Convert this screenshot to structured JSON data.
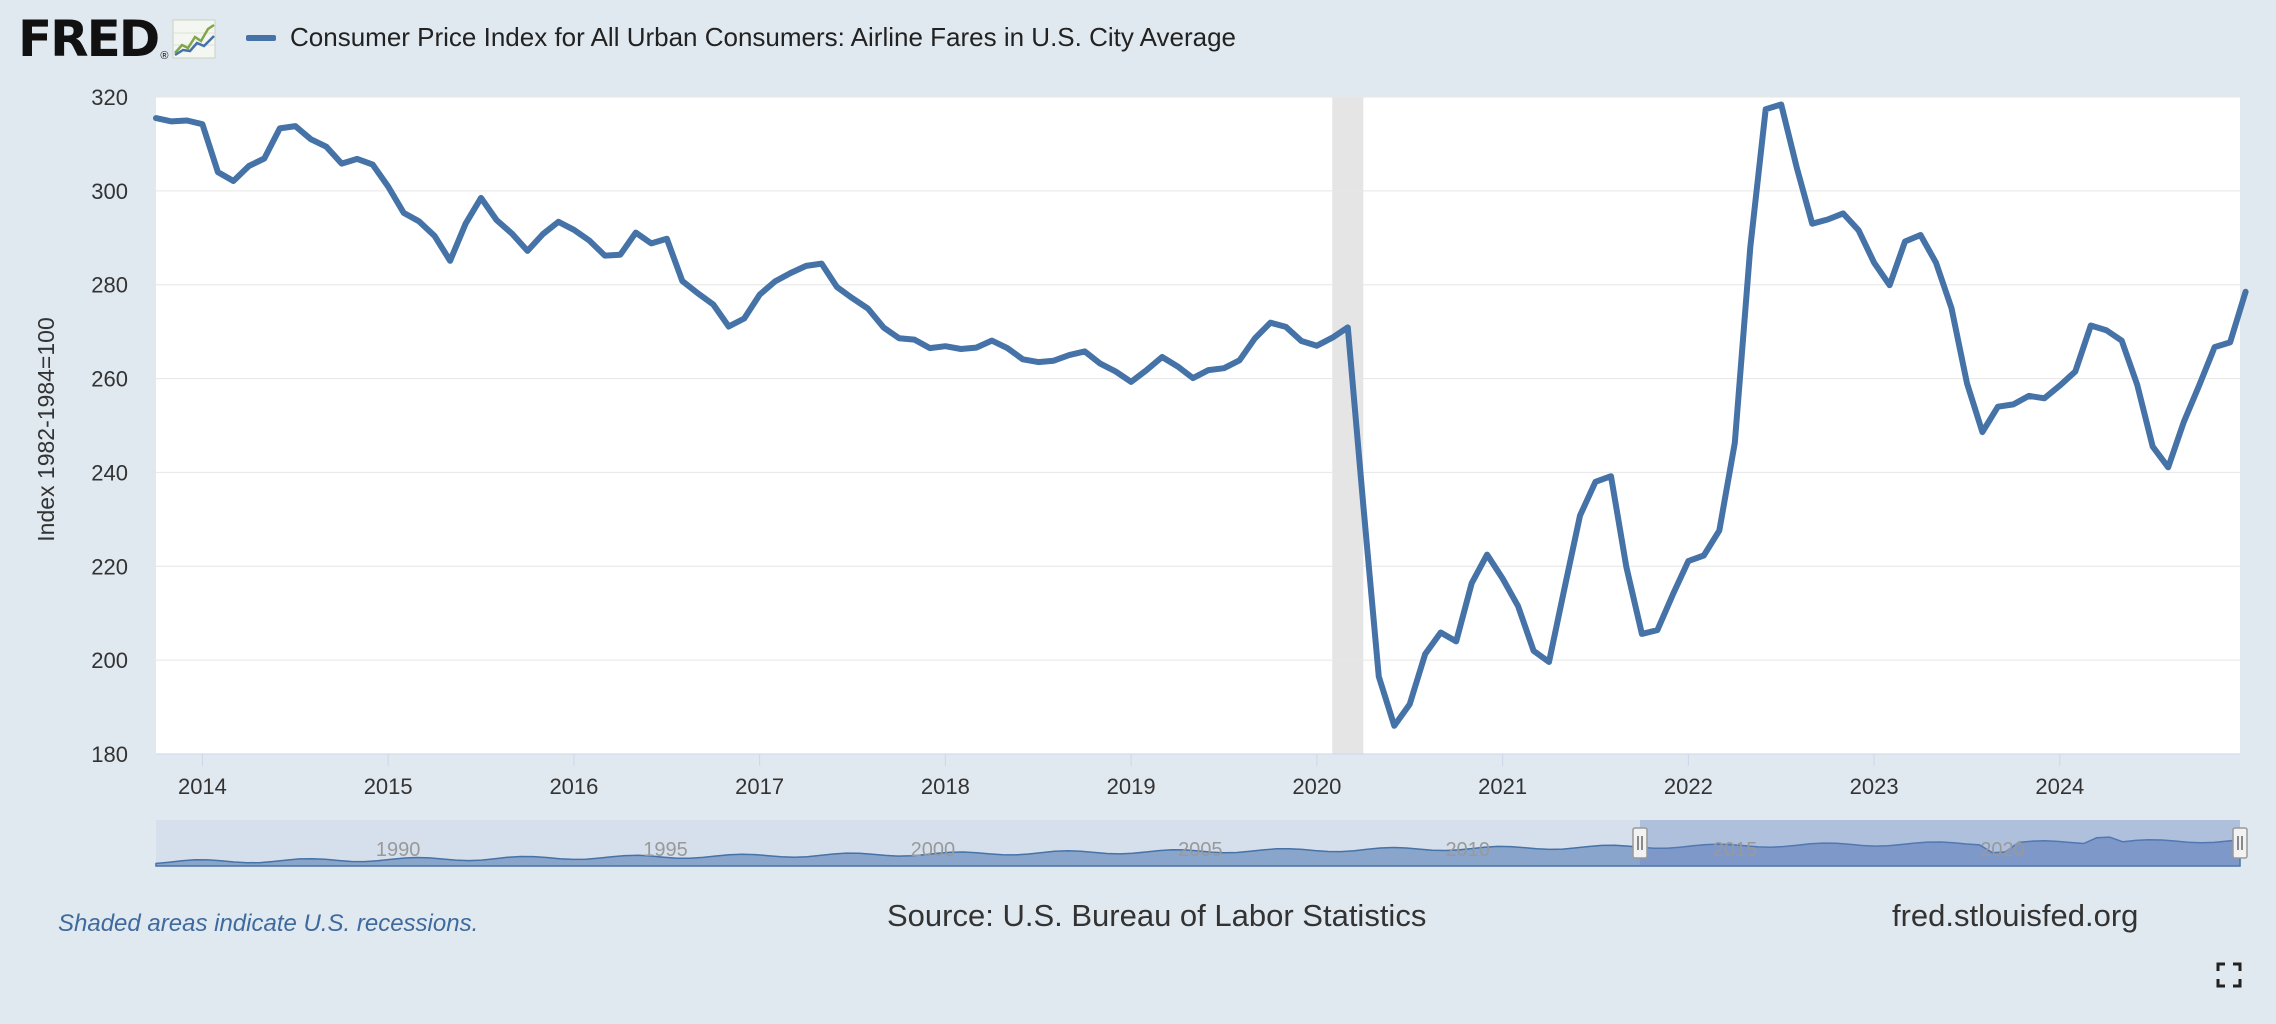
{
  "header": {
    "logo_text": "FRED",
    "logo_registered": "®",
    "title": "Consumer Price Index for All Urban Consumers: Airline Fares in U.S. City Average"
  },
  "footer": {
    "recession_note": "Shaded areas indicate U.S. recessions.",
    "source": "Source: U.S. Bureau of Labor Statistics",
    "site": "fred.stlouisfed.org"
  },
  "colors": {
    "series": "#4572a7",
    "background": "#e1e9f0",
    "plot": "#ffffff",
    "recession": "#e5e5e5"
  },
  "icons": {
    "logo_graph": "line-graph-icon",
    "fullscreen": "expand-icon"
  },
  "chart_data": {
    "type": "line",
    "title": "Consumer Price Index for All Urban Consumers: Airline Fares in U.S. City Average",
    "xlabel": "",
    "ylabel": "Index 1982-1984=100",
    "ylim": [
      180,
      320
    ],
    "xlim": [
      2013.75,
      2024.97
    ],
    "yticks": [
      180,
      200,
      220,
      240,
      260,
      280,
      300,
      320
    ],
    "xticks": [
      2014,
      2015,
      2016,
      2017,
      2018,
      2019,
      2020,
      2021,
      2022,
      2023,
      2024
    ],
    "grid": true,
    "legend": "top-left",
    "recessions": [
      {
        "start": 2020.083,
        "end": 2020.25
      }
    ],
    "series": [
      {
        "name": "Consumer Price Index for All Urban Consumers: Airline Fares in U.S. City Average",
        "start": 2013.75,
        "step": 0.083333,
        "values": [
          315.5,
          314.8,
          315.0,
          314.2,
          304.0,
          302.1,
          305.3,
          306.9,
          313.3,
          313.8,
          311.0,
          309.4,
          305.8,
          306.8,
          305.6,
          300.9,
          295.3,
          293.5,
          290.4,
          285.1,
          293.0,
          298.5,
          293.8,
          290.9,
          287.2,
          290.8,
          293.4,
          291.7,
          289.4,
          286.2,
          286.4,
          291.1,
          288.8,
          289.8,
          280.8,
          278.2,
          275.8,
          271.1,
          272.8,
          277.9,
          280.7,
          282.5,
          284.0,
          284.5,
          279.5,
          277.1,
          274.9,
          270.9,
          268.6,
          268.3,
          266.5,
          266.9,
          266.3,
          266.6,
          268.1,
          266.5,
          264.1,
          263.5,
          263.8,
          265.0,
          265.8,
          263.2,
          261.5,
          259.3,
          261.8,
          264.6,
          262.6,
          260.1,
          261.8,
          262.2,
          263.9,
          268.6,
          271.9,
          271.0,
          268.0,
          267.0,
          268.7,
          270.9,
          233.0,
          196.5,
          186.0,
          190.6,
          201.3,
          205.9,
          204.0,
          216.4,
          222.5,
          217.4,
          211.5,
          202.0,
          199.6,
          215.3,
          230.8,
          238.0,
          239.2,
          219.8,
          205.6,
          206.4,
          214.0,
          221.1,
          222.3,
          227.6,
          246.3,
          288.0,
          317.4,
          318.4,
          305.0,
          293.0,
          293.9,
          295.2,
          291.6,
          284.7,
          279.9,
          289.2,
          290.6,
          284.7,
          275.0,
          259.0,
          248.6,
          254.0,
          254.5,
          256.3,
          255.8,
          258.5,
          261.5,
          271.3,
          270.3,
          268.1,
          258.7,
          245.5,
          241.1,
          250.7,
          258.5,
          266.7,
          267.7,
          278.5
        ]
      }
    ],
    "navigator": {
      "xticks": [
        1990,
        1995,
        2000,
        2005,
        2010,
        2015,
        2020
      ]
    }
  }
}
